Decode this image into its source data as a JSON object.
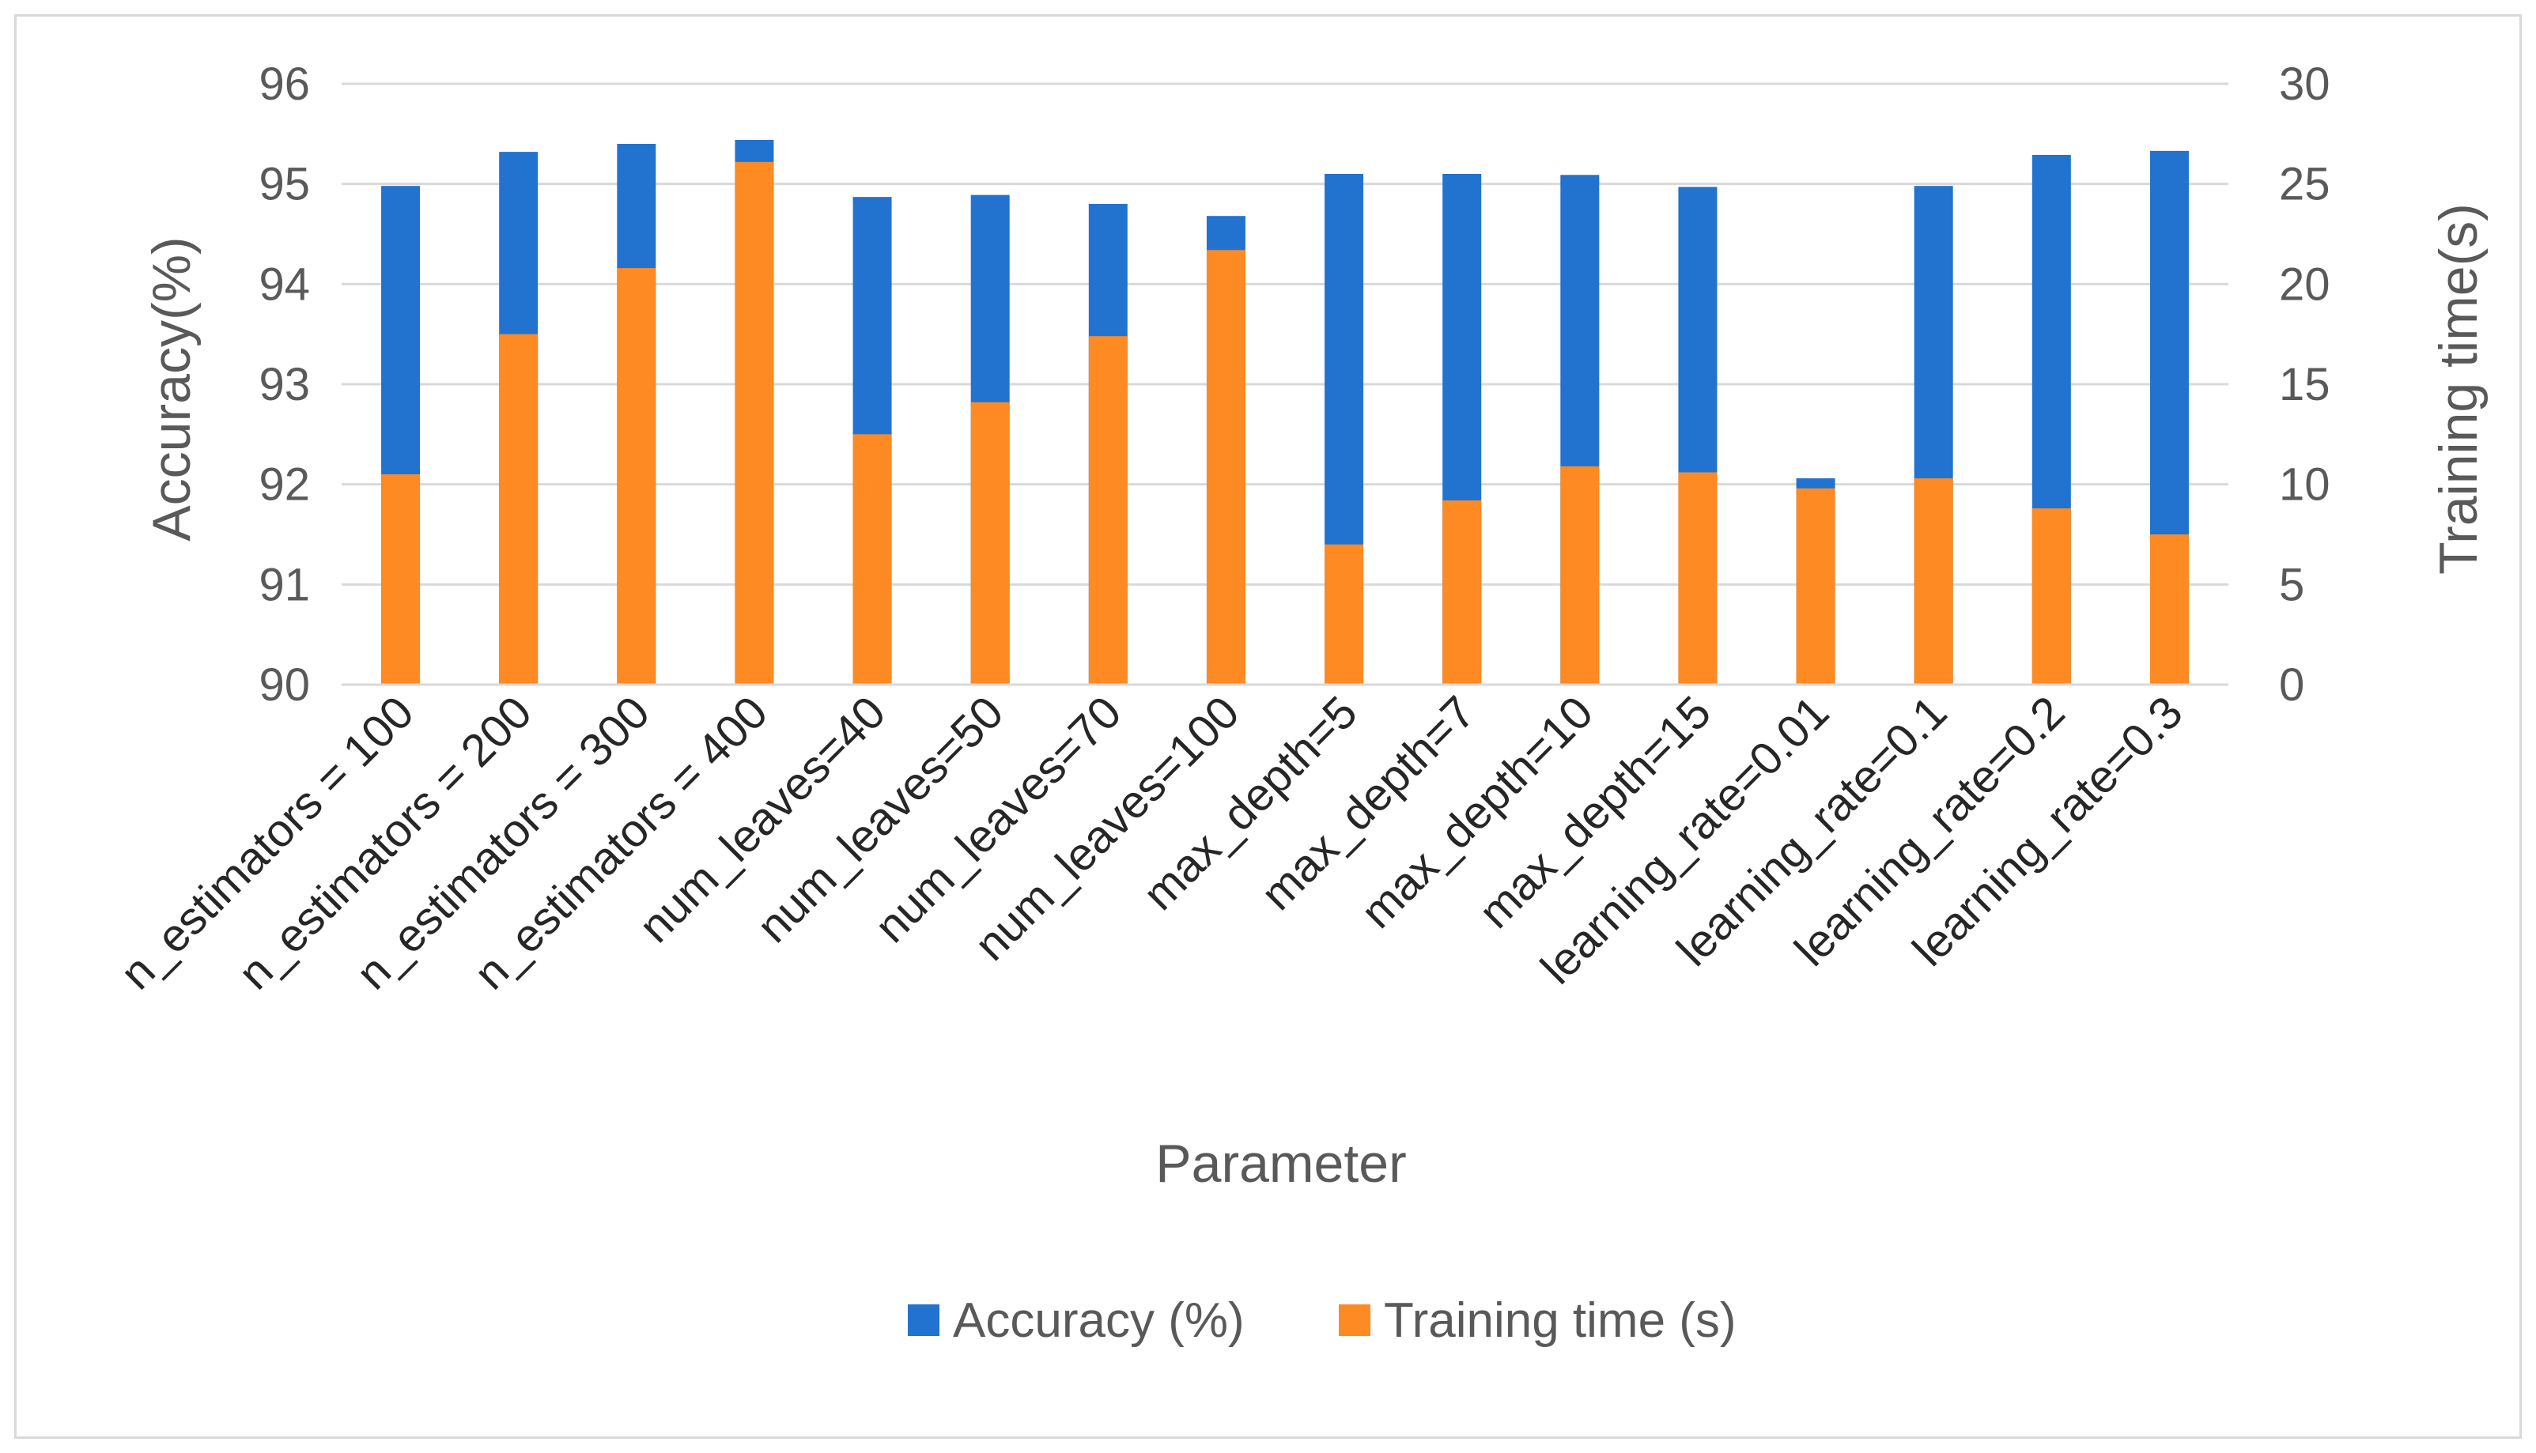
{
  "chart_data": {
    "type": "bar",
    "title": "",
    "xlabel": "Parameter",
    "ylabel": "Accuracy(%)",
    "y2label": "Training time(s)",
    "ylim": [
      90,
      96
    ],
    "y2lim": [
      0,
      30
    ],
    "yticks": [
      "90",
      "91",
      "92",
      "93",
      "94",
      "95",
      "96"
    ],
    "y2ticks": [
      "0",
      "5",
      "10",
      "15",
      "20",
      "25",
      "30"
    ],
    "grid": true,
    "legend_position": "bottom",
    "categories": [
      "n_estimators = 100",
      "n_estimators = 200",
      "n_estimators = 300",
      "n_estimators = 400",
      "num_leaves=40",
      "num_leaves=50",
      "num_leaves=70",
      "num_leaves=100",
      "max_depth=5",
      "max_depth=7",
      "max_depth=10",
      "max_depth=15",
      "learning_rate=0.01",
      "learning_rate=0.1",
      "learning_rate=0.2",
      "learning_rate=0.3"
    ],
    "series": [
      {
        "name": "Accuracy (%)",
        "axis": "left",
        "color": "#2272d0",
        "values": [
          94.98,
          95.32,
          95.4,
          95.44,
          94.87,
          94.89,
          94.8,
          94.68,
          95.1,
          95.1,
          95.09,
          94.97,
          92.06,
          94.98,
          95.29,
          95.33
        ]
      },
      {
        "name": "Training time (s)",
        "axis": "right",
        "color": "#fd8a23",
        "values": [
          10.5,
          17.5,
          20.8,
          26.1,
          12.5,
          14.1,
          17.4,
          21.7,
          7.0,
          9.2,
          10.9,
          10.6,
          9.8,
          10.3,
          8.8,
          7.5
        ]
      }
    ]
  }
}
